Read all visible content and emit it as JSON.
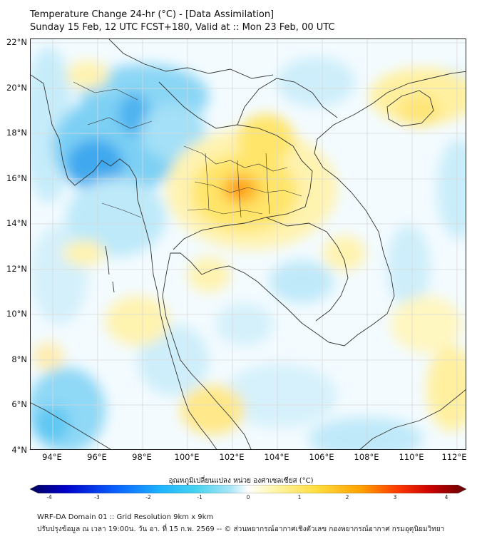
{
  "title": {
    "line1": "Temperature Change 24-hr (°C) - [Data Assimilation]",
    "line2": "Sunday 15 Feb, 12 UTC FCST+180, Valid at :: Mon 23 Feb, 00 UTC"
  },
  "map": {
    "lat_labels": [
      "22°N",
      "20°N",
      "18°N",
      "16°N",
      "14°N",
      "12°N",
      "10°N",
      "8°N",
      "6°N",
      "4°N"
    ],
    "lon_labels": [
      "94°E",
      "96°E",
      "98°E",
      "100°E",
      "102°E",
      "104°E",
      "106°E",
      "108°E",
      "110°E",
      "112°E"
    ],
    "lat_range": [
      4,
      22.2
    ],
    "lon_range": [
      93,
      112.4
    ]
  },
  "colorbar": {
    "title": "อุณหภูมิเปลี่ยนแปลง หน่วย องศาเซลเซียส (°C)",
    "ticks": [
      "-4",
      "-3",
      "-2",
      "-1",
      "0",
      "1",
      "2",
      "3",
      "4"
    ],
    "range": [
      -4,
      4
    ],
    "colors": [
      "#00005a",
      "#0000c8",
      "#0a64ff",
      "#1eb4ff",
      "#46d2f0",
      "#aae6f8",
      "#ffffff",
      "#fff5aa",
      "#ffdc3c",
      "#ffa000",
      "#ff3c00",
      "#c80000",
      "#640000"
    ]
  },
  "footer": {
    "line1": "WRF-DA Domain 01 :: Grid Resolution 9km x 9km",
    "line2": "ปรับปรุงข้อมูล ณ เวลา 19:00น. วัน อา. ที่ 15 ก.พ. 2569 -- © ส่วนพยากรณ์อากาศเชิงตัวเลข กองพยากรณ์อากาศ กรมอุตุนิยมวิทยา"
  }
}
